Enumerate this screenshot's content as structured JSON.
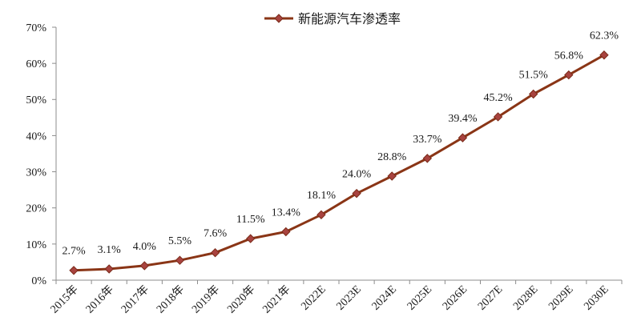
{
  "chart_data": {
    "type": "line",
    "categories": [
      "2015年",
      "2016年",
      "2017年",
      "2018年",
      "2019年",
      "2020年",
      "2021年",
      "2022E",
      "2023E",
      "2024E",
      "2025E",
      "2026E",
      "2027E",
      "2028E",
      "2029E",
      "2030E"
    ],
    "series": [
      {
        "name": "新能源汽车渗透率",
        "values": [
          2.7,
          3.1,
          4.0,
          5.5,
          7.6,
          11.5,
          13.4,
          18.1,
          24.0,
          28.8,
          33.7,
          39.4,
          45.2,
          51.5,
          56.8,
          62.3
        ],
        "data_labels": [
          "2.7%",
          "3.1%",
          "4.0%",
          "5.5%",
          "7.6%",
          "11.5%",
          "13.4%",
          "18.1%",
          "24.0%",
          "28.8%",
          "33.7%",
          "39.4%",
          "45.2%",
          "51.5%",
          "56.8%",
          "62.3%"
        ]
      }
    ],
    "ylim": [
      0,
      70
    ],
    "y_ticks": [
      0,
      10,
      20,
      30,
      40,
      50,
      60,
      70
    ],
    "y_tick_labels": [
      "0%",
      "10%",
      "20%",
      "30%",
      "40%",
      "50%",
      "60%",
      "70%"
    ],
    "grid": false,
    "legend_position": "top-center",
    "colors": {
      "line": "#8A3516",
      "marker_fill": "#A8433F",
      "marker_stroke": "#7A2A18"
    }
  }
}
